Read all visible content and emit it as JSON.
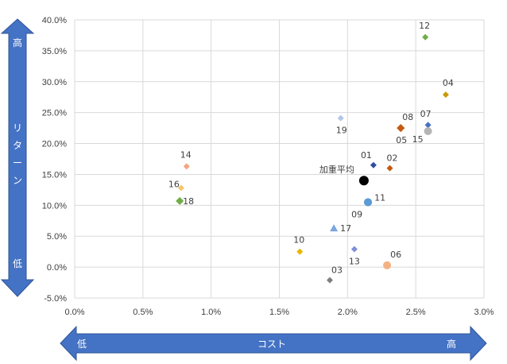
{
  "chart_data": {
    "type": "scatter",
    "x_axis": {
      "range": [
        0,
        3.0
      ],
      "ticks": [
        "0.0%",
        "0.5%",
        "1.0%",
        "1.5%",
        "2.0%",
        "2.5%",
        "3.0%"
      ],
      "arrow_label": "コスト",
      "arrow_low": "低",
      "arrow_high": "高"
    },
    "y_axis": {
      "range": [
        -5,
        40
      ],
      "ticks": [
        "-5.0%",
        "0.0%",
        "5.0%",
        "10.0%",
        "15.0%",
        "20.0%",
        "25.0%",
        "30.0%",
        "35.0%",
        "40.0%"
      ],
      "arrow_label": [
        "リ",
        "タ",
        "ー",
        "ン"
      ],
      "arrow_low": "低",
      "arrow_high": "高"
    },
    "grid": true,
    "points": [
      {
        "label": "01",
        "x": 2.19,
        "y": 16.5,
        "shape": "diamond",
        "color": "#2f4ea0"
      },
      {
        "label": "02",
        "x": 2.31,
        "y": 16.0,
        "shape": "diamond",
        "color": "#c55a11"
      },
      {
        "label": "03",
        "x": 1.87,
        "y": -2.1,
        "shape": "diamond",
        "color": "#7f7f7f"
      },
      {
        "label": "04",
        "x": 2.72,
        "y": 27.9,
        "shape": "diamond",
        "color": "#c99a06"
      },
      {
        "label": "05",
        "x": 2.39,
        "y": 22.5,
        "shape": "diamond",
        "color": "#c55a11"
      },
      {
        "label": "06",
        "x": 2.29,
        "y": 0.3,
        "shape": "circle",
        "color": "#f4b183"
      },
      {
        "label": "07",
        "x": 2.59,
        "y": 23.0,
        "shape": "diamond",
        "color": "#4472c4"
      },
      {
        "label": "08",
        "x": 2.39,
        "y": 22.5,
        "shape": "diamond",
        "color": "#c55a11"
      },
      {
        "label": "09",
        "x": 2.15,
        "y": 10.5,
        "shape": "circle",
        "color": "#5b9bd5"
      },
      {
        "label": "10",
        "x": 1.65,
        "y": 2.5,
        "shape": "diamond",
        "color": "#e6b800"
      },
      {
        "label": "11",
        "x": 2.15,
        "y": 10.5,
        "shape": "circle",
        "color": "#5b9bd5"
      },
      {
        "label": "12",
        "x": 2.57,
        "y": 37.2,
        "shape": "diamond",
        "color": "#70ad47"
      },
      {
        "label": "13",
        "x": 2.05,
        "y": 2.9,
        "shape": "diamond",
        "color": "#7f8fd8"
      },
      {
        "label": "14",
        "x": 0.82,
        "y": 16.3,
        "shape": "diamond",
        "color": "#f4a582"
      },
      {
        "label": "15",
        "x": 2.59,
        "y": 22.0,
        "shape": "circle",
        "color": "#b4b4b4"
      },
      {
        "label": "16",
        "x": 0.78,
        "y": 12.8,
        "shape": "diamond",
        "color": "#f7c56a"
      },
      {
        "label": "17",
        "x": 1.9,
        "y": 6.3,
        "shape": "triangle",
        "color": "#7ba7e0"
      },
      {
        "label": "18",
        "x": 0.77,
        "y": 10.7,
        "shape": "diamond",
        "color": "#70ad47"
      },
      {
        "label": "19",
        "x": 1.95,
        "y": 24.1,
        "shape": "diamond",
        "color": "#b4c6e7"
      },
      {
        "label": "加重平均",
        "x": 2.12,
        "y": 14.0,
        "shape": "circle",
        "color": "#000000"
      }
    ]
  }
}
